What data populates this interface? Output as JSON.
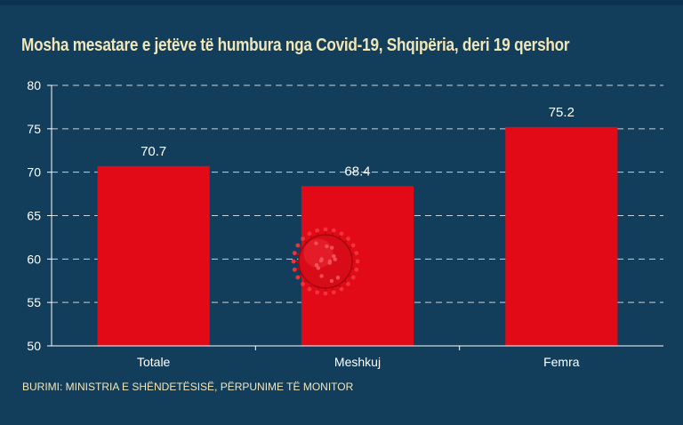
{
  "colors": {
    "background": "#123e5c",
    "bar": "#e30a17",
    "title": "#f1e6b8",
    "text": "#ffffff",
    "grid": "#c8d3dc"
  },
  "title": "Mosha mesatare e jetëve të humbura nga Covid-19, Shqipëria, deri 19 qershor",
  "source": "BURIMI: MINISTRIA E SHËNDETËSISË, PËRPUNIME TË MONITOR",
  "decoration": {
    "icon": "coronavirus-icon"
  },
  "chart_data": {
    "type": "bar",
    "title": "Mosha mesatare e jetëve të humbura nga Covid-19, Shqipëria, deri 19 qershor",
    "categories": [
      "Totale",
      "Meshkuj",
      "Femra"
    ],
    "values": [
      70.7,
      68.4,
      75.2
    ],
    "value_labels": [
      "70.7",
      "68.4",
      "75.2"
    ],
    "ylim": [
      50,
      80
    ],
    "yticks": [
      50,
      55,
      60,
      65,
      70,
      75,
      80
    ],
    "xlabel": "",
    "ylabel": "",
    "grid": "horizontal dashed",
    "legend": "none"
  }
}
